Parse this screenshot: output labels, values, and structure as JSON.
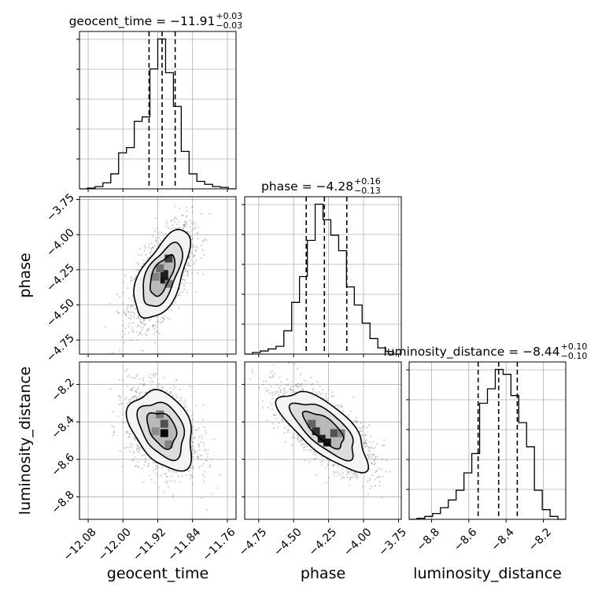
{
  "chart_data": {
    "type": "corner",
    "parameters": [
      {
        "name": "geocent_time",
        "xlabel": "geocent_time",
        "ylabel": "",
        "title": "geocent_time = −11.91",
        "title_upper": "+0.03",
        "title_lower": "−0.03",
        "range": [
          -12.1,
          -11.74
        ],
        "ticks": [
          -12.08,
          -12.0,
          -11.92,
          -11.84,
          -11.76
        ],
        "tick_labels": [
          "−12.08",
          "−12.00",
          "−11.92",
          "−11.84",
          "−11.76"
        ],
        "quantiles": [
          -11.94,
          -11.91,
          -11.88
        ],
        "hist_edges": [
          -12.1,
          -12.082,
          -12.064,
          -12.046,
          -12.028,
          -12.01,
          -11.992,
          -11.974,
          -11.956,
          -11.938,
          -11.92,
          -11.902,
          -11.884,
          -11.866,
          -11.848,
          -11.83,
          -11.812,
          -11.794,
          -11.776,
          -11.758,
          -11.74
        ],
        "hist_counts": [
          0,
          1,
          3,
          8,
          20,
          48,
          55,
          90,
          96,
          160,
          200,
          155,
          110,
          50,
          20,
          10,
          6,
          3,
          2,
          0
        ]
      },
      {
        "name": "phase",
        "xlabel": "phase",
        "ylabel": "phase",
        "title": "phase = −4.28",
        "title_upper": "+0.16",
        "title_lower": "−0.13",
        "range": [
          -4.85,
          -3.73
        ],
        "ticks": [
          -4.75,
          -4.5,
          -4.25,
          -4.0,
          -3.75
        ],
        "tick_labels": [
          "−4.75",
          "−4.50",
          "−4.25",
          "−4.00",
          "−3.75"
        ],
        "quantiles": [
          -4.41,
          -4.28,
          -4.12
        ],
        "hist_edges": [
          -4.85,
          -4.794,
          -4.738,
          -4.682,
          -4.626,
          -4.57,
          -4.514,
          -4.458,
          -4.402,
          -4.346,
          -4.29,
          -4.234,
          -4.178,
          -4.122,
          -4.066,
          -4.01,
          -3.954,
          -3.898,
          -3.842,
          -3.786,
          -3.73
        ],
        "hist_counts": [
          0,
          3,
          6,
          10,
          15,
          45,
          100,
          150,
          220,
          290,
          260,
          230,
          200,
          130,
          95,
          60,
          30,
          12,
          5,
          0
        ]
      },
      {
        "name": "luminosity_distance",
        "xlabel": "luminosity_distance",
        "ylabel": "luminosity_distance",
        "title": "luminosity_distance = −8.44",
        "title_upper": "+0.10",
        "title_lower": "−0.10",
        "range": [
          -8.92,
          -8.08
        ],
        "ticks": [
          -8.8,
          -8.6,
          -8.4,
          -8.2
        ],
        "tick_labels": [
          "−8.8",
          "−8.6",
          "−8.4",
          "−8.2"
        ],
        "quantiles": [
          -8.55,
          -8.44,
          -8.34
        ],
        "hist_edges": [
          -8.92,
          -8.878,
          -8.836,
          -8.794,
          -8.752,
          -8.71,
          -8.668,
          -8.626,
          -8.584,
          -8.542,
          -8.5,
          -8.458,
          -8.416,
          -8.374,
          -8.332,
          -8.29,
          -8.248,
          -8.206,
          -8.164,
          -8.122,
          -8.08
        ],
        "hist_counts": [
          0,
          1,
          3,
          6,
          12,
          20,
          30,
          48,
          68,
          120,
          135,
          155,
          150,
          128,
          100,
          75,
          30,
          10,
          3,
          0
        ]
      }
    ],
    "pairs": [
      {
        "x_param": 0,
        "y_param": 1,
        "mean": [
          -11.91,
          -4.29
        ],
        "std": [
          0.03,
          0.15
        ],
        "rho": 0.6,
        "density_blocks": [
          [
            -11.905,
            -4.32,
            0.9
          ],
          [
            -11.905,
            -4.28,
            0.85
          ],
          [
            -11.895,
            -4.17,
            0.7
          ],
          [
            -11.915,
            -4.24,
            0.45
          ],
          [
            -11.925,
            -4.3,
            0.35
          ],
          [
            -11.895,
            -4.35,
            0.4
          ]
        ]
      },
      {
        "x_param": 0,
        "y_param": 2,
        "mean": [
          -11.91,
          -8.44
        ],
        "std": [
          0.035,
          0.1
        ],
        "rho": -0.35,
        "density_blocks": [
          [
            -11.905,
            -8.46,
            0.95
          ],
          [
            -11.905,
            -8.41,
            0.6
          ],
          [
            -11.915,
            -8.36,
            0.4
          ],
          [
            -11.895,
            -8.52,
            0.35
          ],
          [
            -11.925,
            -8.45,
            0.3
          ]
        ]
      },
      {
        "x_param": 1,
        "y_param": 2,
        "mean": [
          -4.28,
          -8.44
        ],
        "std": [
          0.15,
          0.1
        ],
        "rho": -0.7,
        "density_blocks": [
          [
            -4.34,
            -8.45,
            0.75
          ],
          [
            -4.3,
            -8.49,
            0.85
          ],
          [
            -4.26,
            -8.51,
            0.9
          ],
          [
            -4.21,
            -8.46,
            0.6
          ],
          [
            -4.37,
            -8.41,
            0.5
          ],
          [
            -4.16,
            -8.46,
            0.35
          ]
        ]
      }
    ],
    "grid": true
  }
}
